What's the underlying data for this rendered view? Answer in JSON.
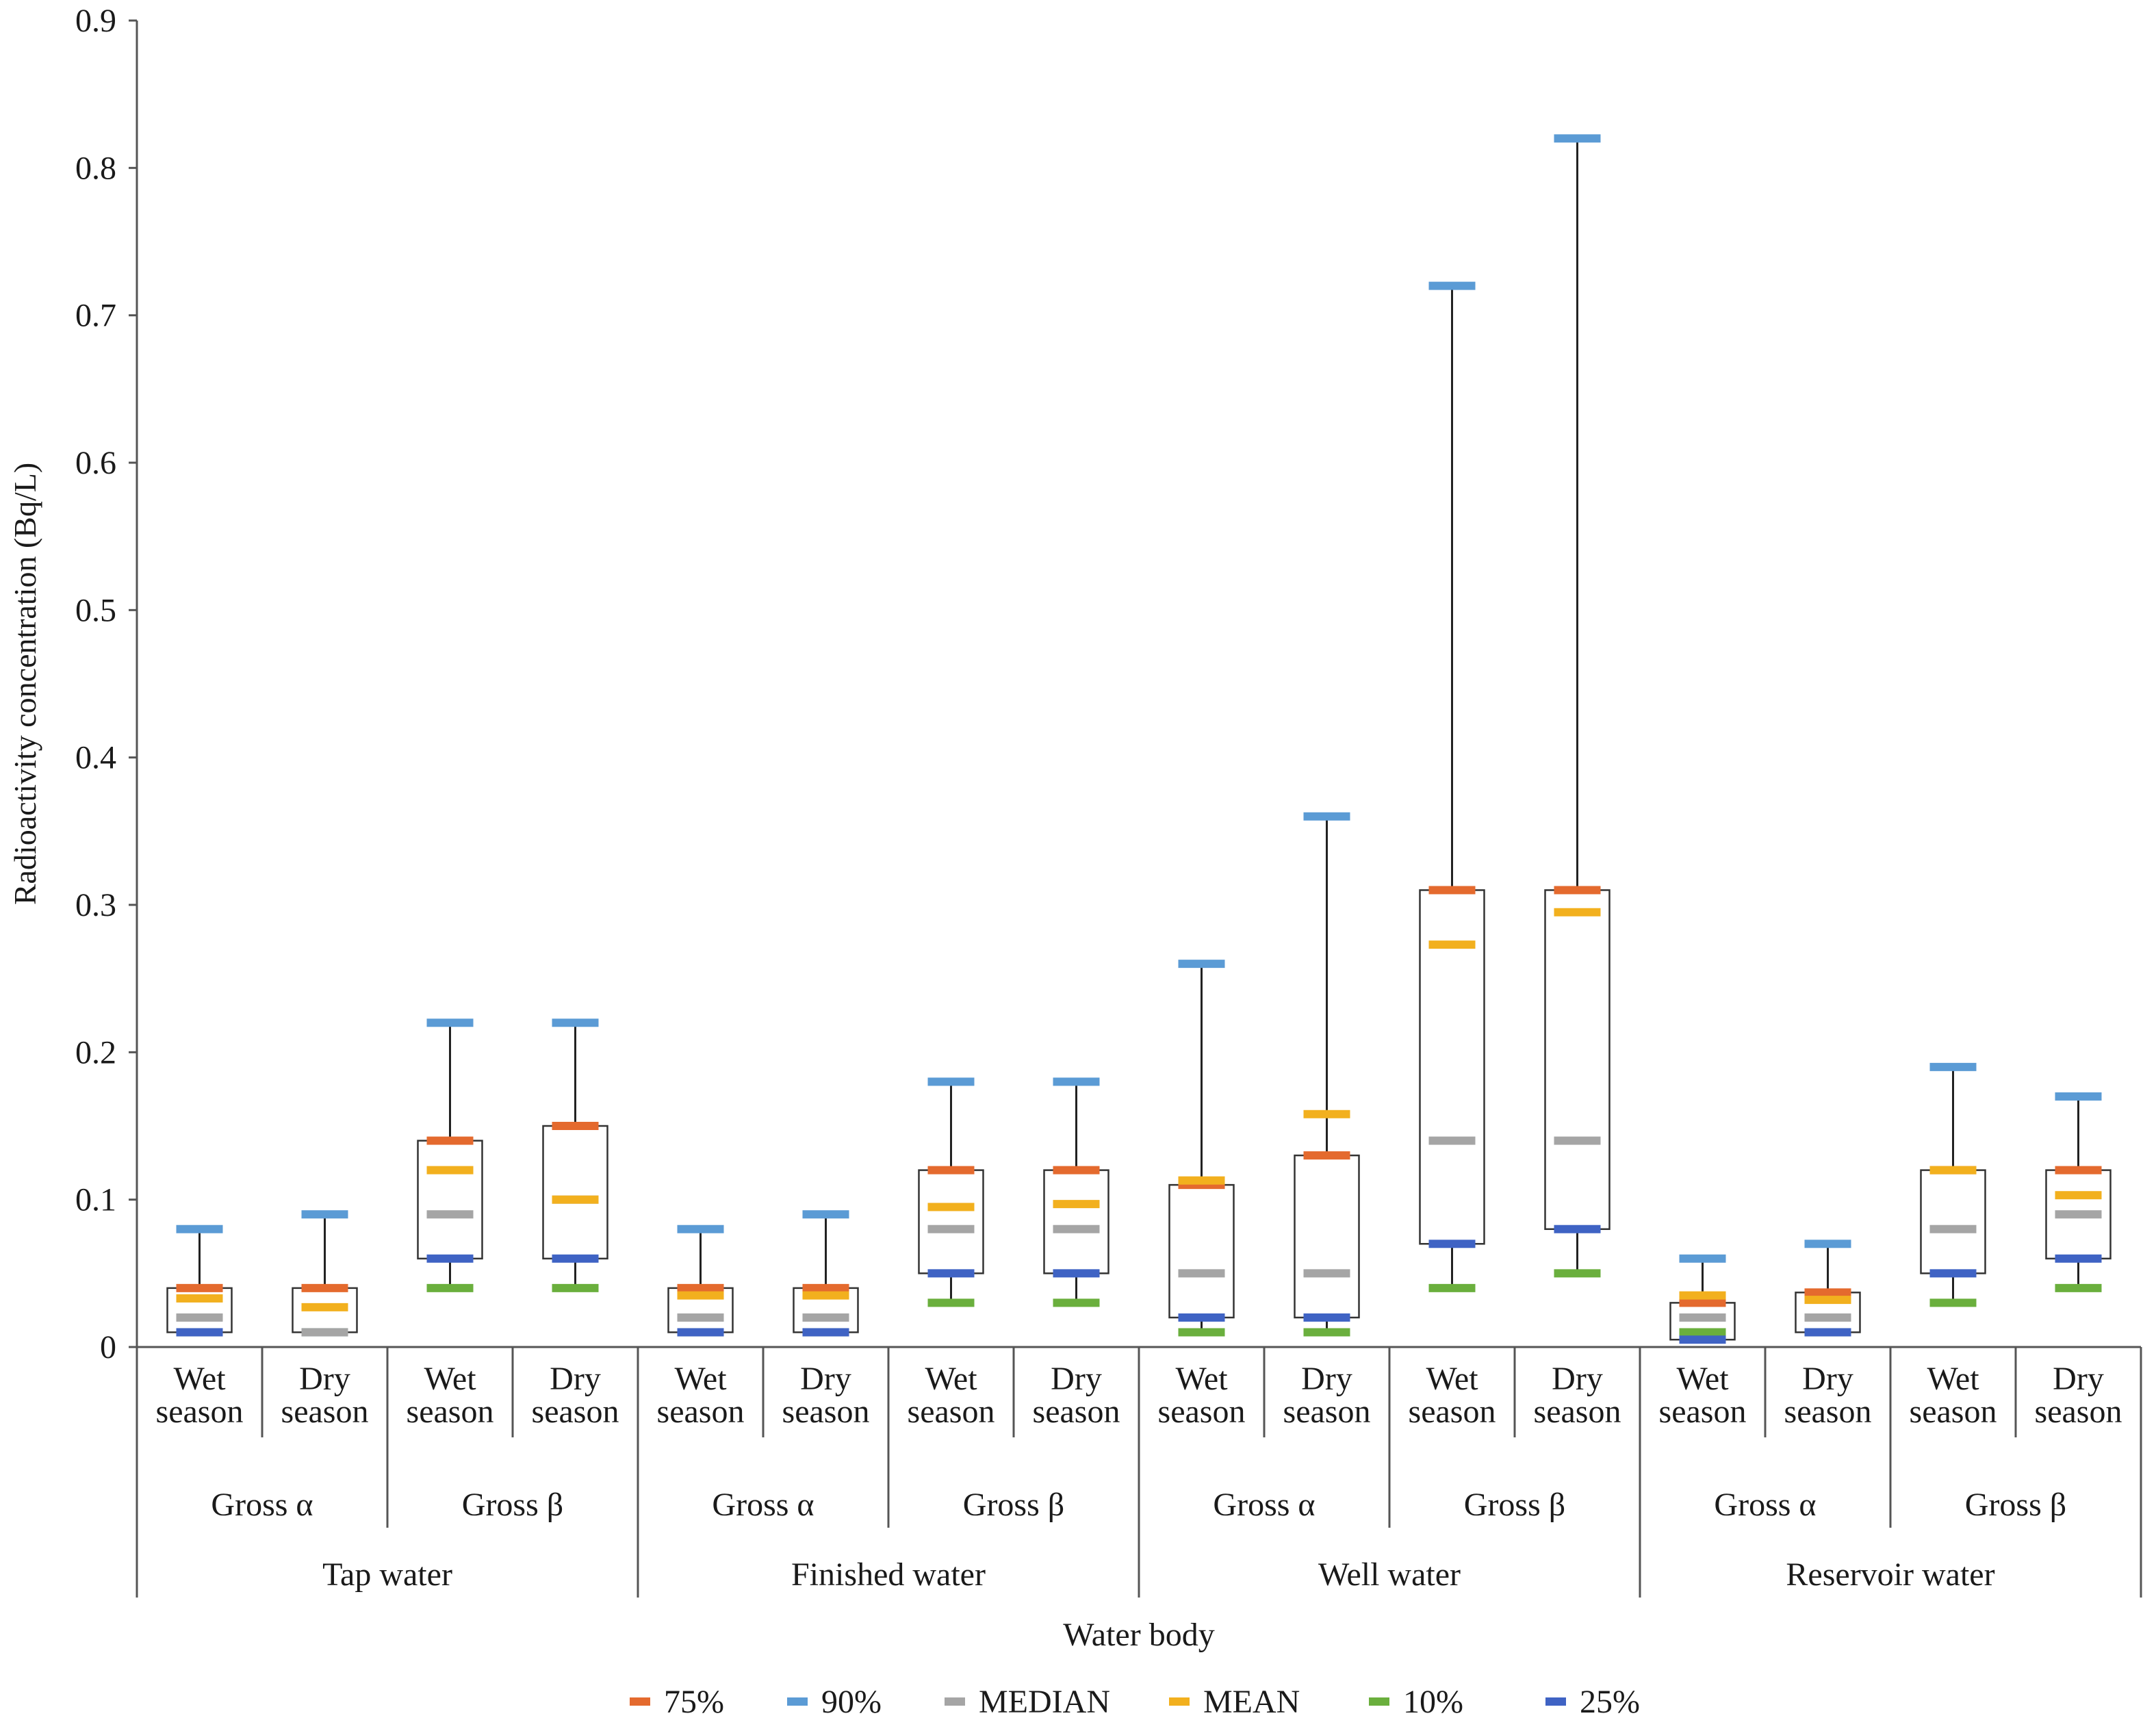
{
  "chart_data": {
    "type": "box",
    "ylabel": "Radioactivity concentration (Bq/L)",
    "xlabel": "Water body",
    "ylim": [
      0,
      0.9
    ],
    "yticks": [
      "0",
      "0.1",
      "0.2",
      "0.3",
      "0.4",
      "0.5",
      "0.6",
      "0.7",
      "0.8",
      "0.9"
    ],
    "grid": false,
    "legend_position": "bottom",
    "legend": [
      {
        "key": "p75",
        "label": "75%",
        "color": "#E46A2E"
      },
      {
        "key": "p90",
        "label": "90%",
        "color": "#5B9BD5"
      },
      {
        "key": "median",
        "label": "MEDIAN",
        "color": "#A5A5A5"
      },
      {
        "key": "mean",
        "label": "MEAN",
        "color": "#F2B01E"
      },
      {
        "key": "p10",
        "label": "10%",
        "color": "#6AAF3D"
      },
      {
        "key": "p25",
        "label": "25%",
        "color": "#3F63C4"
      }
    ],
    "season_labels": [
      [
        "Wet",
        "season"
      ],
      [
        "Dry",
        "season"
      ],
      [
        "Wet",
        "season"
      ],
      [
        "Dry",
        "season"
      ],
      [
        "Wet",
        "season"
      ],
      [
        "Dry",
        "season"
      ],
      [
        "Wet",
        "season"
      ],
      [
        "Dry",
        "season"
      ],
      [
        "Wet",
        "season"
      ],
      [
        "Dry",
        "season"
      ],
      [
        "Wet",
        "season"
      ],
      [
        "Dry",
        "season"
      ],
      [
        "Wet",
        "season"
      ],
      [
        "Dry",
        "season"
      ],
      [
        "Wet",
        "season"
      ],
      [
        "Dry",
        "season"
      ]
    ],
    "gross_labels": [
      "Gross α",
      "Gross β",
      "Gross α",
      "Gross β",
      "Gross α",
      "Gross β",
      "Gross α",
      "Gross β"
    ],
    "water_bodies": [
      "Tap water",
      "Finished water",
      "Well water",
      "Reservoir water"
    ],
    "series": [
      {
        "p10": 0.01,
        "p25": 0.01,
        "median": 0.02,
        "mean": 0.033,
        "p75": 0.04,
        "p90": 0.08
      },
      {
        "p10": 0.01,
        "p25": 0.01,
        "median": 0.01,
        "mean": 0.027,
        "p75": 0.04,
        "p90": 0.09
      },
      {
        "p10": 0.04,
        "p25": 0.06,
        "median": 0.09,
        "mean": 0.12,
        "p75": 0.14,
        "p90": 0.22
      },
      {
        "p10": 0.04,
        "p25": 0.06,
        "median": 0.1,
        "mean": 0.1,
        "p75": 0.15,
        "p90": 0.22
      },
      {
        "p10": 0.01,
        "p25": 0.01,
        "median": 0.02,
        "mean": 0.035,
        "p75": 0.04,
        "p90": 0.08
      },
      {
        "p10": 0.01,
        "p25": 0.01,
        "median": 0.02,
        "mean": 0.035,
        "p75": 0.04,
        "p90": 0.09
      },
      {
        "p10": 0.03,
        "p25": 0.05,
        "median": 0.08,
        "mean": 0.095,
        "p75": 0.12,
        "p90": 0.18
      },
      {
        "p10": 0.03,
        "p25": 0.05,
        "median": 0.08,
        "mean": 0.097,
        "p75": 0.12,
        "p90": 0.18
      },
      {
        "p10": 0.01,
        "p25": 0.02,
        "median": 0.05,
        "mean": 0.113,
        "p75": 0.11,
        "p90": 0.26
      },
      {
        "p10": 0.01,
        "p25": 0.02,
        "median": 0.05,
        "mean": 0.158,
        "p75": 0.13,
        "p90": 0.36
      },
      {
        "p10": 0.04,
        "p25": 0.07,
        "median": 0.14,
        "mean": 0.273,
        "p75": 0.31,
        "p90": 0.72
      },
      {
        "p10": 0.05,
        "p25": 0.08,
        "median": 0.14,
        "mean": 0.295,
        "p75": 0.31,
        "p90": 0.82
      },
      {
        "p10": 0.01,
        "p25": 0.005,
        "median": 0.02,
        "mean": 0.035,
        "p75": 0.03,
        "p90": 0.06
      },
      {
        "p10": 0.01,
        "p25": 0.01,
        "median": 0.02,
        "mean": 0.032,
        "p75": 0.037,
        "p90": 0.07
      },
      {
        "p10": 0.03,
        "p25": 0.05,
        "median": 0.08,
        "mean": 0.12,
        "p75": 0.12,
        "p90": 0.19
      },
      {
        "p10": 0.04,
        "p25": 0.06,
        "median": 0.09,
        "mean": 0.103,
        "p75": 0.12,
        "p90": 0.17
      }
    ]
  }
}
